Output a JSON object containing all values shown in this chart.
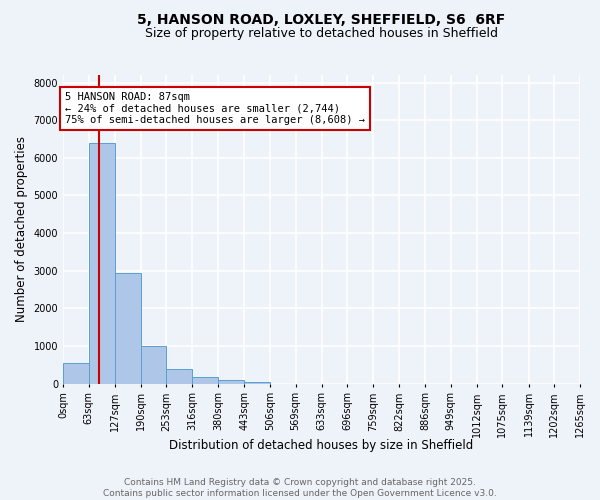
{
  "title_line1": "5, HANSON ROAD, LOXLEY, SHEFFIELD, S6  6RF",
  "title_line2": "Size of property relative to detached houses in Sheffield",
  "xlabel": "Distribution of detached houses by size in Sheffield",
  "ylabel": "Number of detached properties",
  "bin_edges": [
    0,
    63,
    127,
    190,
    253,
    316,
    380,
    443,
    506,
    569,
    633,
    696,
    759,
    822,
    886,
    949,
    1012,
    1075,
    1139,
    1202,
    1265
  ],
  "bar_heights": [
    550,
    6400,
    2950,
    1000,
    380,
    170,
    100,
    50,
    0,
    0,
    0,
    0,
    0,
    0,
    0,
    0,
    0,
    0,
    0,
    0
  ],
  "bar_color": "#aec6e8",
  "bar_edge_color": "#5a9fd4",
  "property_line_x": 87,
  "property_line_color": "#cc0000",
  "annotation_text": "5 HANSON ROAD: 87sqm\n← 24% of detached houses are smaller (2,744)\n75% of semi-detached houses are larger (8,608) →",
  "annotation_box_color": "#ffffff",
  "annotation_box_edge_color": "#cc0000",
  "ylim": [
    0,
    8200
  ],
  "yticks": [
    0,
    1000,
    2000,
    3000,
    4000,
    5000,
    6000,
    7000,
    8000
  ],
  "footer_line1": "Contains HM Land Registry data © Crown copyright and database right 2025.",
  "footer_line2": "Contains public sector information licensed under the Open Government Licence v3.0.",
  "background_color": "#eef2f9",
  "plot_bg_color": "#eef2f9",
  "grid_color": "#ffffff",
  "title_fontsize": 10,
  "subtitle_fontsize": 9,
  "axis_label_fontsize": 8.5,
  "tick_fontsize": 7,
  "annotation_fontsize": 7.5,
  "footer_fontsize": 6.5
}
